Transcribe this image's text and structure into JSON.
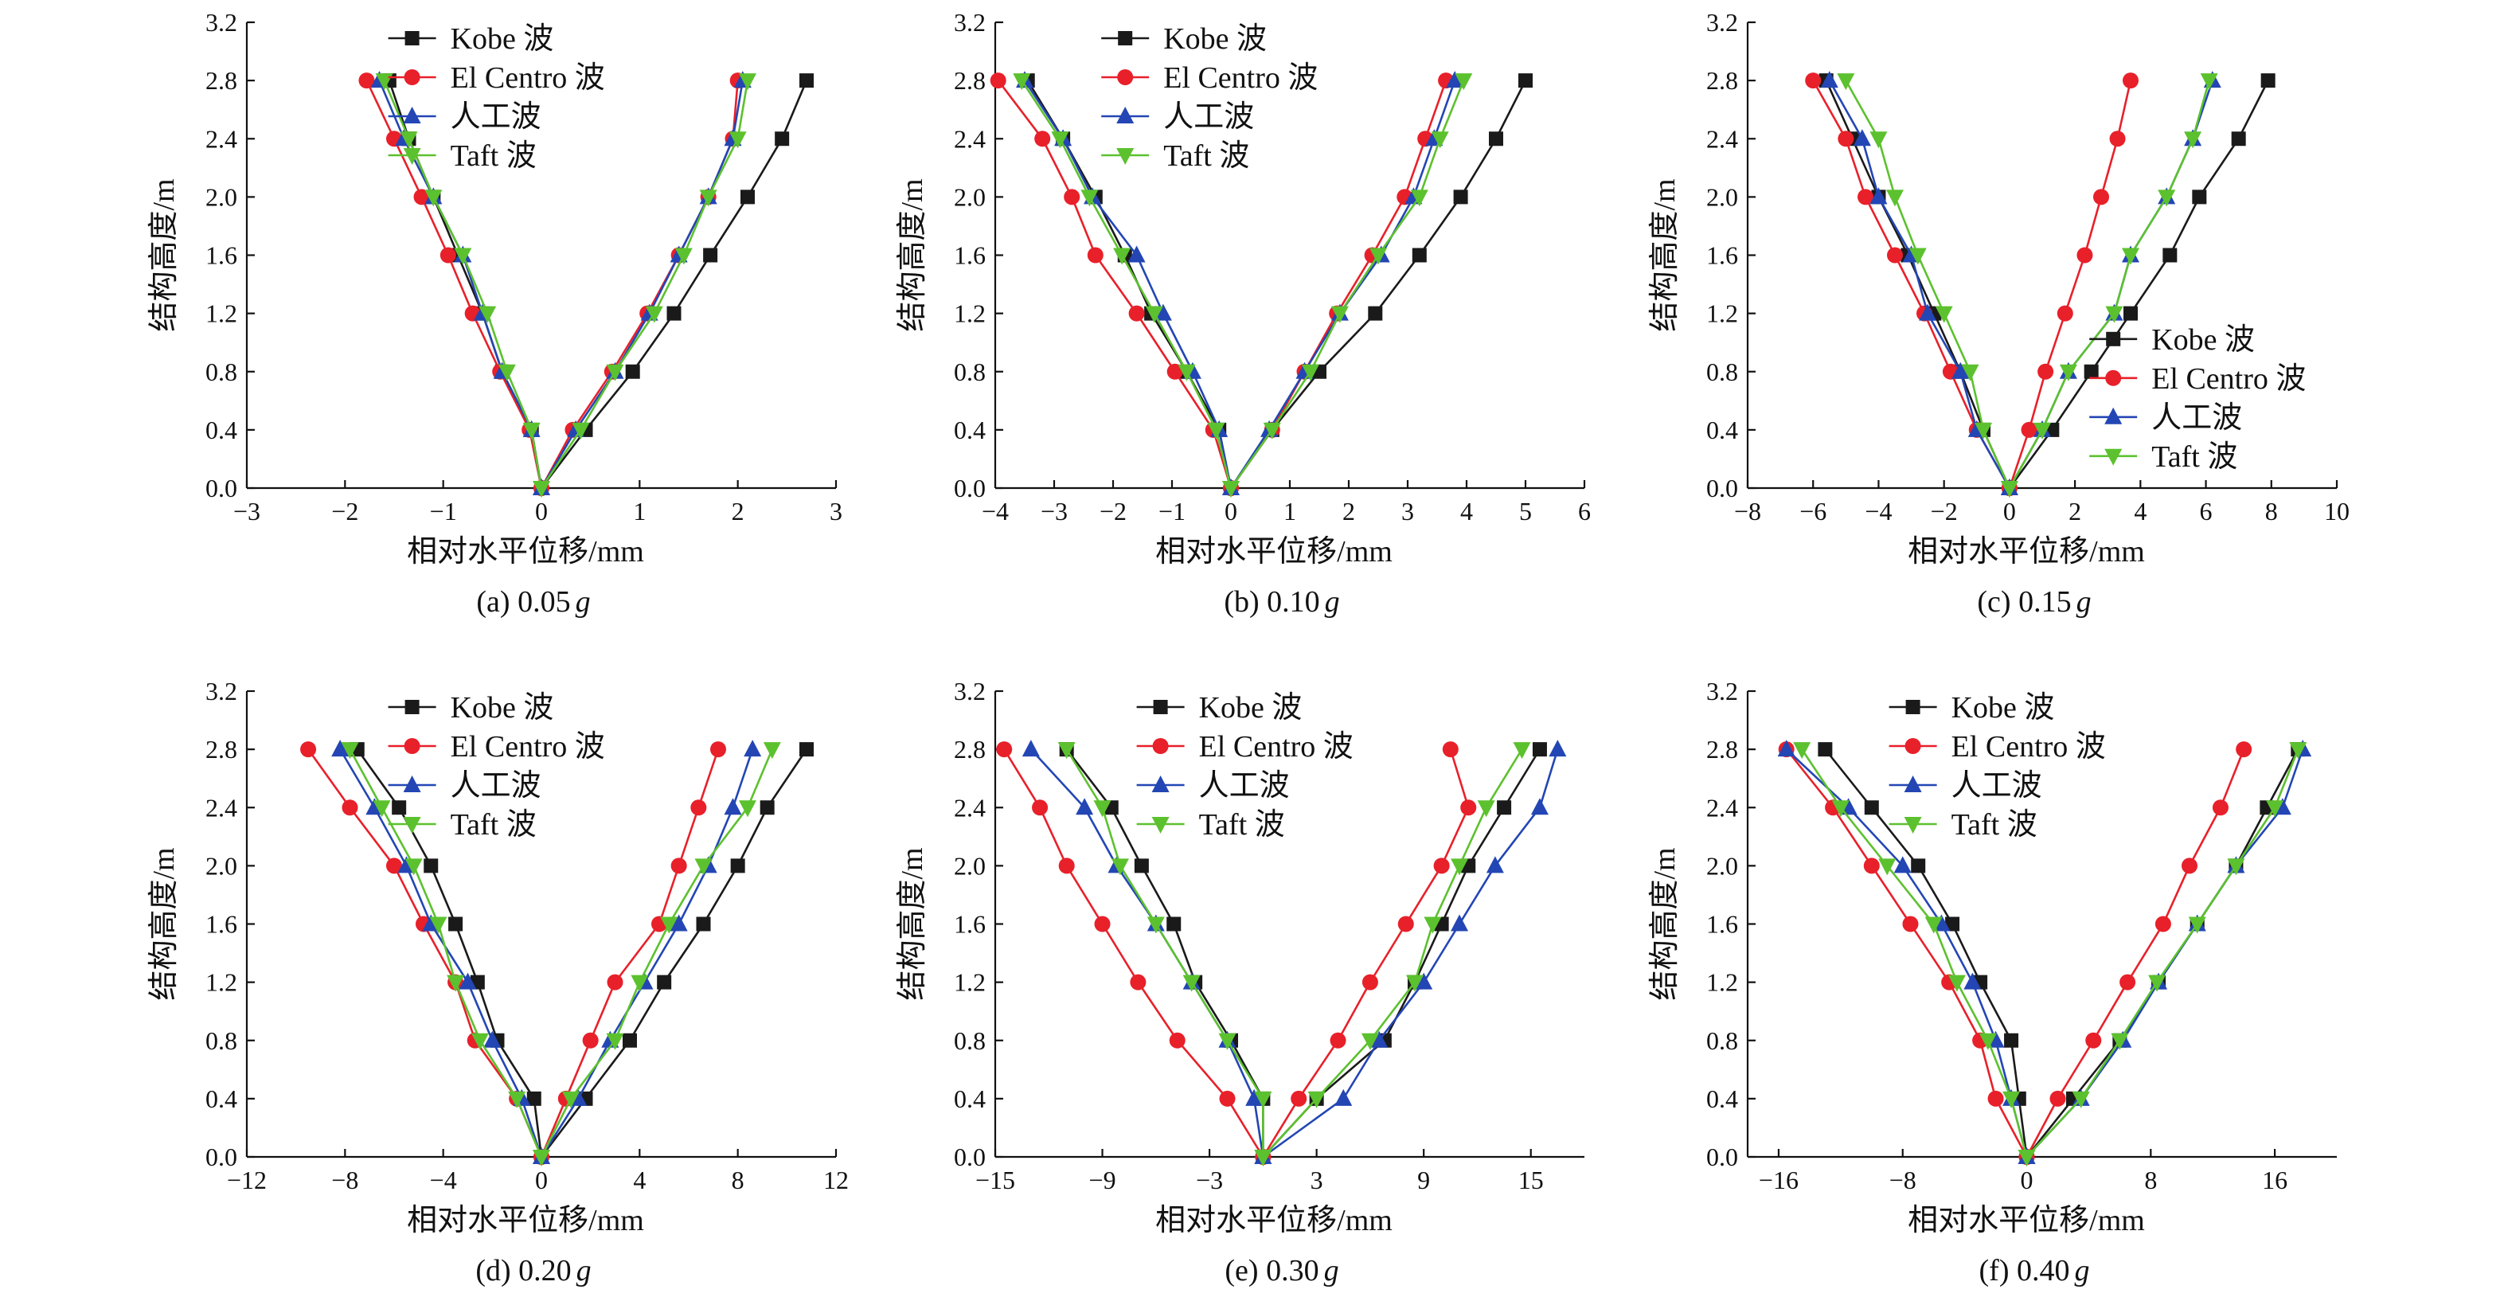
{
  "colors": {
    "kobe": "#1a1a1a",
    "elcentro": "#e8202a",
    "artificial": "#2346b4",
    "taft": "#5cc12e"
  },
  "chart_data": [
    {
      "type": "line",
      "caption": "(a) 0.05",
      "caption_g": "g",
      "xlabel": "相对水平位移/mm",
      "ylabel": "结构高度/m",
      "xlim": [
        -3,
        3
      ],
      "ylim": [
        0,
        3.2
      ],
      "xticks": [
        -3,
        -2,
        -1,
        0,
        1,
        2,
        3
      ],
      "yticks": [
        0.0,
        0.4,
        0.8,
        1.2,
        1.6,
        2.0,
        2.4,
        2.8,
        3.2
      ],
      "legend_position": "top-center",
      "series": [
        {
          "name": "Kobe 波",
          "marker": "square",
          "y": [
            0,
            0.4,
            0.8,
            1.2,
            1.6,
            2.0,
            2.4,
            2.8,
            0.4,
            0.8,
            1.2,
            1.6,
            2.0,
            2.4,
            2.8
          ],
          "left": [
            -0.1,
            -0.4,
            -0.6,
            -0.85,
            -1.1,
            -1.35,
            -1.55
          ],
          "right": [
            0.45,
            0.93,
            1.35,
            1.72,
            2.1,
            2.45,
            2.7
          ]
        },
        {
          "name": "El Centro 波",
          "marker": "circle",
          "left": [
            -0.12,
            -0.42,
            -0.7,
            -0.95,
            -1.22,
            -1.5,
            -1.78
          ],
          "right": [
            0.32,
            0.72,
            1.08,
            1.4,
            1.7,
            1.95,
            2.0
          ]
        },
        {
          "name": "人工波",
          "marker": "triangle-up",
          "left": [
            -0.1,
            -0.4,
            -0.6,
            -0.8,
            -1.1,
            -1.4,
            -1.65
          ],
          "right": [
            0.35,
            0.75,
            1.1,
            1.4,
            1.7,
            1.95,
            2.05
          ]
        },
        {
          "name": "Taft 波",
          "marker": "triangle-down",
          "left": [
            -0.1,
            -0.35,
            -0.55,
            -0.8,
            -1.1,
            -1.35,
            -1.6
          ],
          "right": [
            0.4,
            0.75,
            1.15,
            1.45,
            1.7,
            2.0,
            2.1
          ]
        }
      ]
    },
    {
      "type": "line",
      "caption": "(b) 0.10",
      "caption_g": "g",
      "xlabel": "相对水平位移/mm",
      "ylabel": "结构高度/m",
      "xlim": [
        -4,
        6
      ],
      "ylim": [
        0,
        3.2
      ],
      "xticks": [
        -4,
        -3,
        -2,
        -1,
        0,
        1,
        2,
        3,
        4,
        5,
        6
      ],
      "yticks": [
        0.0,
        0.4,
        0.8,
        1.2,
        1.6,
        2.0,
        2.4,
        2.8,
        3.2
      ],
      "legend_position": "top-center",
      "series": [
        {
          "name": "Kobe 波",
          "marker": "square",
          "left": [
            -0.2,
            -0.75,
            -1.35,
            -1.8,
            -2.3,
            -2.85,
            -3.45
          ],
          "right": [
            0.7,
            1.5,
            2.45,
            3.2,
            3.9,
            4.5,
            5.0
          ]
        },
        {
          "name": "El Centro 波",
          "marker": "circle",
          "left": [
            -0.3,
            -0.95,
            -1.6,
            -2.3,
            -2.7,
            -3.2,
            -3.95
          ],
          "right": [
            0.7,
            1.25,
            1.8,
            2.4,
            2.95,
            3.3,
            3.65
          ]
        },
        {
          "name": "人工波",
          "marker": "triangle-up",
          "left": [
            -0.2,
            -0.65,
            -1.15,
            -1.6,
            -2.35,
            -2.85,
            -3.5
          ],
          "right": [
            0.65,
            1.25,
            1.85,
            2.55,
            3.1,
            3.45,
            3.8
          ]
        },
        {
          "name": "Taft 波",
          "marker": "triangle-down",
          "left": [
            -0.25,
            -0.75,
            -1.3,
            -1.85,
            -2.4,
            -2.9,
            -3.55
          ],
          "right": [
            0.7,
            1.35,
            1.85,
            2.5,
            3.2,
            3.55,
            3.95
          ]
        }
      ]
    },
    {
      "type": "line",
      "caption": "(c) 0.15",
      "caption_g": "g",
      "xlabel": "相对水平位移/mm",
      "ylabel": "结构高度/m",
      "xlim": [
        -8,
        10
      ],
      "ylim": [
        0,
        3.2
      ],
      "xticks": [
        -8,
        -6,
        -4,
        -2,
        0,
        2,
        4,
        6,
        8,
        10
      ],
      "yticks": [
        0.0,
        0.4,
        0.8,
        1.2,
        1.6,
        2.0,
        2.4,
        2.8,
        3.2
      ],
      "legend_position": "right",
      "series": [
        {
          "name": "Kobe 波",
          "marker": "square",
          "left": [
            -0.8,
            -1.5,
            -2.3,
            -3.1,
            -4.0,
            -4.8,
            -5.6
          ],
          "right": [
            1.3,
            2.5,
            3.7,
            4.9,
            5.8,
            7.0,
            7.9
          ]
        },
        {
          "name": "El Centro 波",
          "marker": "circle",
          "left": [
            -1.0,
            -1.8,
            -2.6,
            -3.5,
            -4.4,
            -5.0,
            -6.0
          ],
          "right": [
            0.6,
            1.1,
            1.7,
            2.3,
            2.8,
            3.3,
            3.7
          ]
        },
        {
          "name": "人工波",
          "marker": "triangle-up",
          "left": [
            -1.0,
            -1.5,
            -2.5,
            -3.0,
            -4.0,
            -4.5,
            -5.5
          ],
          "right": [
            1.0,
            1.8,
            3.2,
            3.7,
            4.8,
            5.6,
            6.2
          ]
        },
        {
          "name": "Taft 波",
          "marker": "triangle-down",
          "left": [
            -0.8,
            -1.2,
            -2.0,
            -2.8,
            -3.5,
            -4.0,
            -5.0
          ],
          "right": [
            1.0,
            1.8,
            3.2,
            3.7,
            4.8,
            5.6,
            6.1
          ]
        }
      ]
    },
    {
      "type": "line",
      "caption": "(d) 0.20",
      "caption_g": "g",
      "xlabel": "相对水平位移/mm",
      "ylabel": "结构高度/m",
      "xlim": [
        -12,
        12
      ],
      "ylim": [
        0,
        3.2
      ],
      "xticks": [
        -12,
        -8,
        -4,
        0,
        4,
        8,
        12
      ],
      "yticks": [
        0.0,
        0.4,
        0.8,
        1.2,
        1.6,
        2.0,
        2.4,
        2.8,
        3.2
      ],
      "legend_position": "top-center",
      "series": [
        {
          "name": "Kobe 波",
          "marker": "square",
          "left": [
            -0.3,
            -1.8,
            -2.6,
            -3.5,
            -4.5,
            -5.8,
            -7.5
          ],
          "right": [
            1.8,
            3.6,
            5.0,
            6.6,
            8.0,
            9.2,
            10.8
          ]
        },
        {
          "name": "El Centro 波",
          "marker": "circle",
          "left": [
            -1.0,
            -2.7,
            -3.5,
            -4.8,
            -6.0,
            -7.8,
            -9.5
          ],
          "right": [
            1.0,
            2.0,
            3.0,
            4.8,
            5.6,
            6.4,
            7.2
          ]
        },
        {
          "name": "人工波",
          "marker": "triangle-up",
          "left": [
            -0.8,
            -2.0,
            -3.0,
            -4.5,
            -5.5,
            -6.8,
            -8.2
          ],
          "right": [
            1.5,
            2.8,
            4.2,
            5.6,
            6.8,
            7.8,
            8.6
          ]
        },
        {
          "name": "Taft 波",
          "marker": "triangle-down",
          "left": [
            -1.0,
            -2.5,
            -3.5,
            -4.2,
            -5.2,
            -6.5,
            -7.8
          ],
          "right": [
            1.2,
            3.0,
            4.0,
            5.2,
            6.6,
            8.4,
            9.4
          ]
        }
      ]
    },
    {
      "type": "line",
      "caption": "(e) 0.30",
      "caption_g": "g",
      "xlabel": "相对水平位移/mm",
      "ylabel": "结构高度/m",
      "xlim": [
        -15,
        18
      ],
      "ylim": [
        0,
        3.2
      ],
      "xticks": [
        -15,
        -9,
        -3,
        3,
        9,
        15
      ],
      "yticks": [
        0.0,
        0.4,
        0.8,
        1.2,
        1.6,
        2.0,
        2.4,
        2.8,
        3.2
      ],
      "legend_position": "top-center",
      "series": [
        {
          "name": "Kobe 波",
          "marker": "square",
          "left": [
            0.0,
            -1.8,
            -3.8,
            -5.0,
            -6.8,
            -8.5,
            -11.0
          ],
          "right": [
            3.0,
            6.8,
            8.5,
            10.0,
            11.5,
            13.5,
            15.5
          ]
        },
        {
          "name": "El Centro 波",
          "marker": "circle",
          "left": [
            -2.0,
            -4.8,
            -7.0,
            -9.0,
            -11.0,
            -12.5,
            -14.5
          ],
          "right": [
            2.0,
            4.2,
            6.0,
            8.0,
            10.0,
            11.5,
            10.5
          ]
        },
        {
          "name": "人工波",
          "marker": "triangle-up",
          "left": [
            -0.5,
            -2.0,
            -4.0,
            -6.0,
            -8.2,
            -10.0,
            -13.0
          ],
          "right": [
            4.5,
            6.5,
            9.0,
            11.0,
            13.0,
            15.5,
            16.5
          ]
        },
        {
          "name": "Taft 波",
          "marker": "triangle-down",
          "left": [
            0.0,
            -2.0,
            -4.0,
            -6.0,
            -8.0,
            -9.0,
            -11.0
          ],
          "right": [
            3.0,
            6.0,
            8.5,
            9.5,
            11.0,
            12.5,
            14.5
          ]
        }
      ]
    },
    {
      "type": "line",
      "caption": "(f) 0.40",
      "caption_g": "g",
      "xlabel": "相对水平位移/mm",
      "ylabel": "结构高度/m",
      "xlim": [
        -18,
        20
      ],
      "ylim": [
        0,
        3.2
      ],
      "xticks": [
        -16,
        -8,
        0,
        8,
        16
      ],
      "yticks": [
        0.0,
        0.4,
        0.8,
        1.2,
        1.6,
        2.0,
        2.4,
        2.8,
        3.2
      ],
      "legend_position": "top-center",
      "series": [
        {
          "name": "Kobe 波",
          "marker": "square",
          "left": [
            -0.5,
            -1.0,
            -3.0,
            -4.8,
            -7.0,
            -10.0,
            -13.0
          ],
          "right": [
            3.0,
            6.0,
            8.5,
            11.0,
            13.5,
            15.5,
            17.5
          ]
        },
        {
          "name": "El Centro 波",
          "marker": "circle",
          "left": [
            -2.0,
            -3.0,
            -5.0,
            -7.5,
            -10.0,
            -12.5,
            -15.5
          ],
          "right": [
            2.0,
            4.3,
            6.5,
            8.8,
            10.5,
            12.5,
            14.0
          ]
        },
        {
          "name": "人工波",
          "marker": "triangle-up",
          "left": [
            -1.0,
            -2.0,
            -3.5,
            -5.5,
            -8.0,
            -11.5,
            -15.5
          ],
          "right": [
            3.5,
            6.2,
            8.5,
            11.0,
            13.5,
            16.5,
            17.8
          ]
        },
        {
          "name": "Taft 波",
          "marker": "triangle-down",
          "left": [
            -1.0,
            -2.5,
            -4.5,
            -6.0,
            -9.0,
            -12.0,
            -14.5
          ],
          "right": [
            3.5,
            6.0,
            8.4,
            11.0,
            13.5,
            16.0,
            17.5
          ]
        }
      ]
    }
  ]
}
